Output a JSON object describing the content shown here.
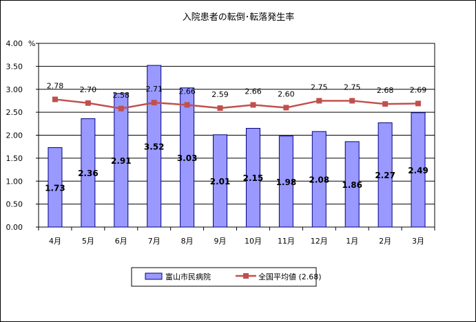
{
  "chart_data": {
    "type": "bar",
    "title": "入院患者の転倒･転落発生率",
    "unit": "%",
    "categories": [
      "4月",
      "5月",
      "6月",
      "7月",
      "8月",
      "9月",
      "10月",
      "11月",
      "12月",
      "1月",
      "2月",
      "3月"
    ],
    "ylim": [
      0,
      4
    ],
    "yticks": [
      "0.00",
      "0.50",
      "1.00",
      "1.50",
      "2.00",
      "2.50",
      "3.00",
      "3.50",
      "4.00"
    ],
    "grid": true,
    "legend_position": "bottom",
    "series": [
      {
        "name": "富山市民病院",
        "type": "bar",
        "color": "#9999ff",
        "values": [
          1.73,
          2.36,
          2.91,
          3.52,
          3.03,
          2.01,
          2.15,
          1.98,
          2.08,
          1.86,
          2.27,
          2.49
        ],
        "labels": [
          "1.73",
          "2.36",
          "2.91",
          "3.52",
          "3.03",
          "2.01",
          "2.15",
          "1.98",
          "2.08",
          "1.86",
          "2.27",
          "2.49"
        ]
      },
      {
        "name": "全国平均値 (2.68)",
        "type": "line",
        "color": "#c0504d",
        "values": [
          2.78,
          2.7,
          2.58,
          2.71,
          2.66,
          2.59,
          2.66,
          2.6,
          2.75,
          2.75,
          2.68,
          2.69
        ],
        "labels": [
          "2.78",
          "2.70",
          "2.58",
          "2.71",
          "2.66",
          "2.59",
          "2.66",
          "2.60",
          "2.75",
          "2.75",
          "2.68",
          "2.69"
        ]
      }
    ]
  }
}
